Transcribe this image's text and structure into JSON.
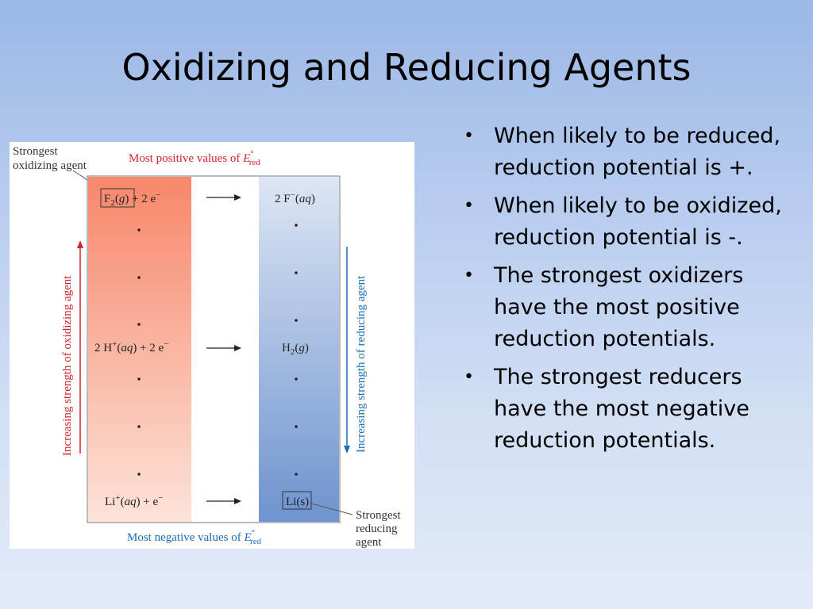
{
  "slide": {
    "title": "Oxidizing and Reducing Agents"
  },
  "bullets": [
    "When likely to be reduced, reduction potential is +.",
    "When likely to be oxidized, reduction potential is -.",
    "The strongest oxidizers have the most positive reduction potentials.",
    "The strongest reducers have the most negative reduction potentials."
  ],
  "figure": {
    "top_label_prefix": "Most positive values of ",
    "bottom_label_prefix": "Most negative values of ",
    "E_symbol": "E",
    "E_sup": "°",
    "E_sub": "red",
    "left_corner_label_line1": "Strongest",
    "left_corner_label_line2": "oxidizing agent",
    "right_corner_label_line1": "Strongest",
    "right_corner_label_line2": "reducing",
    "right_corner_label_line3": "agent",
    "left_axis_label": "Increasing strength of oxidizing agent",
    "right_axis_label": "Increasing strength of reducing agent",
    "reactions": [
      {
        "left": "F₂(g) + 2 e⁻",
        "right": "2 F⁻(aq)"
      },
      {
        "left": "2 H⁺(aq) + 2 e⁻",
        "right": "H₂(g)"
      },
      {
        "left": "Li⁺(aq) + e⁻",
        "right": "Li(s)"
      }
    ],
    "colors": {
      "left_column_top": "#f7876a",
      "left_column_bottom": "#fde3d9",
      "right_column_top": "#dde6f4",
      "right_column_bottom": "#6e93cf",
      "red_text": "#d2232a",
      "blue_text": "#1c6fb4"
    }
  }
}
